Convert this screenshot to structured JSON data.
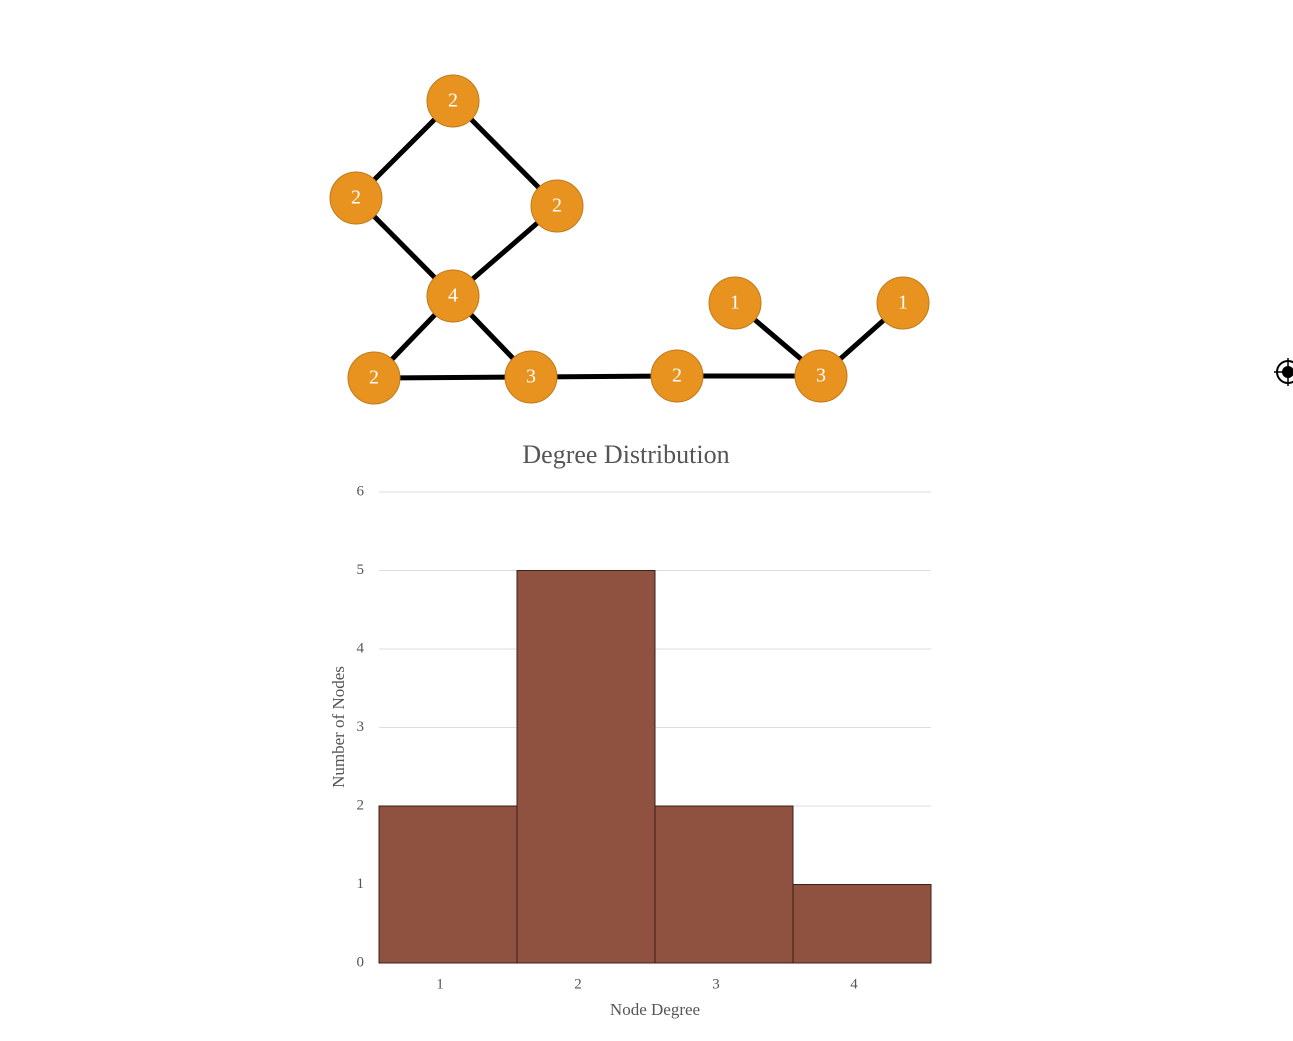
{
  "graph": {
    "nodes": [
      {
        "label": "2"
      },
      {
        "label": "2"
      },
      {
        "label": "2"
      },
      {
        "label": "4"
      },
      {
        "label": "2"
      },
      {
        "label": "3"
      },
      {
        "label": "2"
      },
      {
        "label": "1"
      },
      {
        "label": "3"
      },
      {
        "label": "1"
      }
    ]
  },
  "chart_data": {
    "type": "bar",
    "title": "Degree Distribution",
    "x_label": "Node Degree",
    "y_label": "Number of Nodes",
    "categories": [
      "1",
      "2",
      "3",
      "4"
    ],
    "values": [
      2,
      5,
      2,
      1
    ],
    "color": "#8f5140",
    "ylim": [
      0,
      6
    ],
    "yticks": [
      0,
      1,
      2,
      3,
      4,
      5,
      6
    ],
    "grid": true
  }
}
